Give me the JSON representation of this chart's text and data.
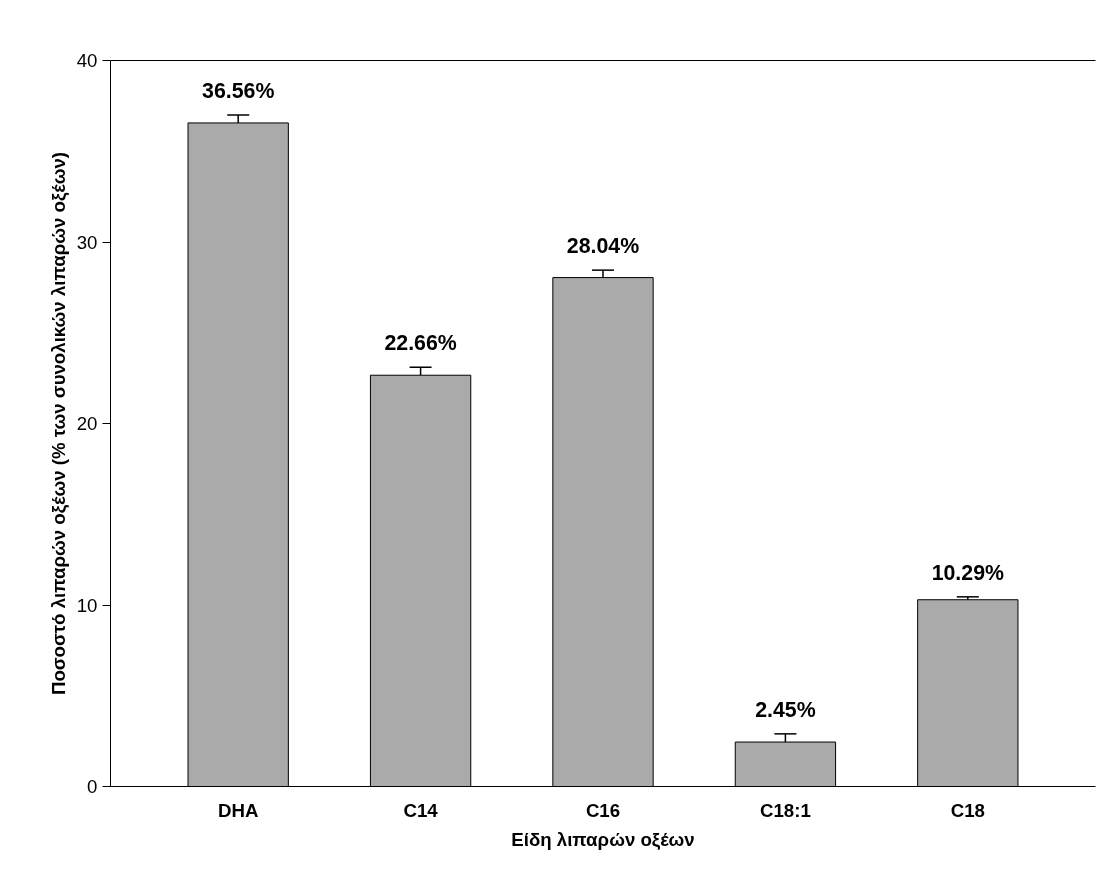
{
  "chart_data": {
    "type": "bar",
    "xlabel": "Είδη λιπαρών οξέων",
    "ylabel": "Ποσοστό λιπαρών οξέων (% των συνολικών λιπαρών οξέων)",
    "categories": [
      "DHA",
      "C14",
      "C16",
      "C18:1",
      "C18"
    ],
    "values": [
      36.56,
      22.66,
      28.04,
      2.45,
      10.29
    ],
    "color": "#aaaaaa",
    "errors": [
      [
        36.56,
        37.0
      ],
      [
        22.66,
        23.1
      ],
      [
        28.04,
        28.45
      ],
      [
        2.45,
        2.9
      ],
      [
        10.29,
        10.45
      ]
    ],
    "value_labels": [
      "36.56%",
      "22.66%",
      "28.04%",
      "2.45%",
      "10.29%"
    ],
    "ylim": [
      0,
      40
    ],
    "yticks": [
      0,
      10,
      20,
      30,
      40
    ],
    "grid": false
  }
}
